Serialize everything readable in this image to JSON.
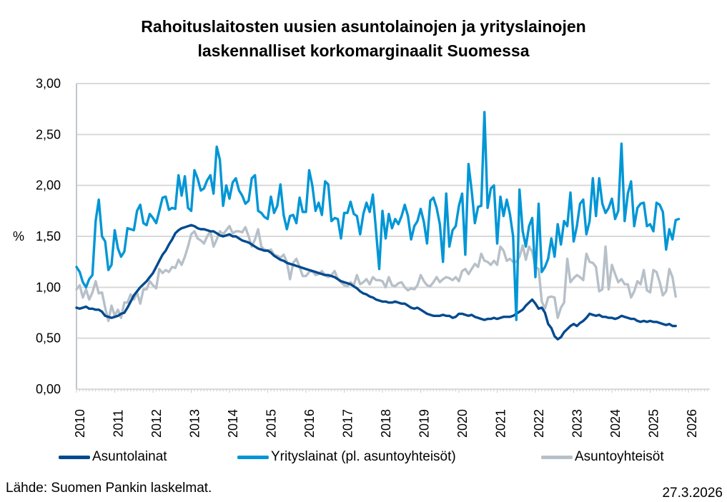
{
  "chart_data": {
    "type": "line",
    "title": "Rahoituslaitosten uusien asuntolainojen ja yrityslainojen laskennalliset korkomarginaalit Suomessa",
    "title_lines": [
      "Rahoituslaitosten uusien asuntolainojen ja yrityslainojen",
      "laskennalliset korkomarginaalit Suomessa"
    ],
    "xlabel": "",
    "ylabel": "%",
    "ylim": [
      0,
      3
    ],
    "y_ticks": [
      "0,00",
      "0,50",
      "1,00",
      "1,50",
      "2,00",
      "2,50",
      "3,00"
    ],
    "x_ticks": [
      "2010",
      "2011",
      "2012",
      "2013",
      "2014",
      "2015",
      "2016",
      "2017",
      "2018",
      "2019",
      "2020",
      "2021",
      "2022",
      "2023",
      "2024",
      "2025",
      "2026"
    ],
    "x_start": "2010-01",
    "frequency": "monthly",
    "grid": "horizontal",
    "legend_position": "bottom",
    "series": [
      {
        "name": "Asuntolainat",
        "color": "#004a8f",
        "values": [
          0.8,
          0.79,
          0.8,
          0.81,
          0.79,
          0.79,
          0.78,
          0.78,
          0.76,
          0.72,
          0.71,
          0.7,
          0.71,
          0.72,
          0.74,
          0.75,
          0.8,
          0.86,
          0.92,
          0.96,
          1.0,
          1.03,
          1.06,
          1.1,
          1.14,
          1.2,
          1.26,
          1.32,
          1.36,
          1.42,
          1.47,
          1.53,
          1.56,
          1.58,
          1.59,
          1.6,
          1.61,
          1.6,
          1.58,
          1.57,
          1.57,
          1.56,
          1.55,
          1.55,
          1.53,
          1.51,
          1.5,
          1.51,
          1.52,
          1.5,
          1.5,
          1.48,
          1.46,
          1.45,
          1.44,
          1.42,
          1.4,
          1.38,
          1.37,
          1.36,
          1.36,
          1.34,
          1.31,
          1.29,
          1.27,
          1.26,
          1.24,
          1.23,
          1.22,
          1.21,
          1.2,
          1.19,
          1.18,
          1.17,
          1.16,
          1.15,
          1.14,
          1.13,
          1.12,
          1.12,
          1.11,
          1.1,
          1.08,
          1.06,
          1.05,
          1.04,
          1.03,
          1.01,
          0.99,
          0.96,
          0.94,
          0.93,
          0.91,
          0.9,
          0.88,
          0.87,
          0.86,
          0.86,
          0.85,
          0.85,
          0.86,
          0.85,
          0.84,
          0.84,
          0.82,
          0.8,
          0.79,
          0.8,
          0.78,
          0.76,
          0.74,
          0.73,
          0.72,
          0.72,
          0.72,
          0.73,
          0.72,
          0.72,
          0.7,
          0.71,
          0.74,
          0.74,
          0.73,
          0.72,
          0.73,
          0.71,
          0.7,
          0.69,
          0.68,
          0.69,
          0.69,
          0.7,
          0.69,
          0.7,
          0.71,
          0.71,
          0.71,
          0.72,
          0.74,
          0.76,
          0.78,
          0.82,
          0.85,
          0.88,
          0.84,
          0.79,
          0.8,
          0.75,
          0.64,
          0.6,
          0.52,
          0.49,
          0.51,
          0.56,
          0.59,
          0.62,
          0.64,
          0.62,
          0.65,
          0.67,
          0.7,
          0.74,
          0.73,
          0.72,
          0.73,
          0.71,
          0.71,
          0.7,
          0.7,
          0.69,
          0.7,
          0.72,
          0.71,
          0.7,
          0.69,
          0.69,
          0.67,
          0.66,
          0.67,
          0.66,
          0.67,
          0.66,
          0.66,
          0.65,
          0.64,
          0.63,
          0.64,
          0.62,
          0.62
        ]
      },
      {
        "name": "Yrityslainat (pl. asuntoyhteisöt)",
        "color": "#0096d6",
        "values": [
          1.2,
          1.15,
          1.05,
          1.0,
          1.08,
          1.12,
          1.65,
          1.86,
          1.5,
          1.45,
          1.17,
          1.22,
          1.56,
          1.38,
          1.3,
          1.35,
          1.58,
          1.57,
          1.56,
          1.75,
          1.81,
          1.63,
          1.61,
          1.72,
          1.68,
          1.63,
          1.75,
          1.88,
          1.89,
          1.76,
          1.78,
          1.77,
          2.1,
          1.9,
          2.09,
          1.78,
          1.75,
          2.15,
          2.07,
          1.95,
          1.97,
          2.05,
          2.1,
          1.92,
          2.38,
          2.25,
          1.8,
          2.0,
          1.87,
          2.03,
          2.07,
          1.95,
          1.9,
          1.82,
          1.85,
          2.07,
          2.1,
          1.75,
          1.73,
          1.69,
          1.67,
          1.89,
          1.73,
          1.8,
          2.01,
          1.71,
          1.57,
          1.7,
          1.71,
          1.63,
          1.88,
          1.74,
          1.74,
          2.15,
          2.0,
          1.75,
          1.83,
          1.71,
          2.04,
          2.01,
          1.65,
          1.68,
          1.67,
          1.48,
          1.73,
          1.73,
          1.84,
          1.72,
          1.7,
          1.52,
          1.72,
          1.83,
          1.74,
          1.91,
          1.55,
          1.18,
          1.75,
          1.48,
          1.72,
          1.58,
          1.67,
          1.62,
          1.7,
          1.81,
          1.7,
          1.47,
          1.6,
          1.65,
          1.77,
          1.64,
          1.43,
          1.85,
          1.88,
          1.78,
          1.62,
          1.25,
          1.92,
          1.4,
          1.56,
          1.6,
          1.8,
          1.92,
          1.32,
          2.21,
          1.95,
          1.63,
          1.79,
          1.8,
          2.72,
          1.78,
          1.97,
          2.0,
          1.43,
          1.89,
          1.7,
          1.86,
          1.72,
          1.5,
          0.68,
          1.96,
          1.55,
          1.4,
          1.6,
          1.68,
          1.1,
          1.82,
          1.15,
          1.2,
          1.28,
          1.48,
          1.3,
          1.62,
          1.42,
          1.65,
          1.6,
          1.93,
          1.45,
          1.6,
          1.82,
          1.86,
          1.52,
          1.65,
          2.07,
          1.7,
          2.07,
          1.82,
          1.73,
          1.78,
          1.87,
          1.67,
          1.75,
          2.41,
          1.65,
          1.92,
          2.04,
          1.6,
          1.78,
          1.82,
          1.83,
          1.6,
          1.62,
          1.55,
          1.83,
          1.81,
          1.74,
          1.37,
          1.57,
          1.47,
          1.66,
          1.67
        ]
      },
      {
        "name": "Asuntoyhteisöt",
        "color": "#b7c0c8",
        "values": [
          0.98,
          1.02,
          0.9,
          0.98,
          0.88,
          0.95,
          1.06,
          0.94,
          0.95,
          0.8,
          0.67,
          0.82,
          0.72,
          0.78,
          0.7,
          0.85,
          0.85,
          0.93,
          0.88,
          0.95,
          0.84,
          0.98,
          0.98,
          1.06,
          1.02,
          0.99,
          1.18,
          1.14,
          1.17,
          1.15,
          1.2,
          1.19,
          1.27,
          1.22,
          1.3,
          1.4,
          1.52,
          1.55,
          1.48,
          1.46,
          1.43,
          1.5,
          1.55,
          1.4,
          1.47,
          1.55,
          1.52,
          1.56,
          1.6,
          1.53,
          1.55,
          1.55,
          1.54,
          1.59,
          1.5,
          1.4,
          1.47,
          1.57,
          1.4,
          1.37,
          1.36,
          1.37,
          1.32,
          1.31,
          1.29,
          1.32,
          1.25,
          1.08,
          1.24,
          1.28,
          1.2,
          1.11,
          1.11,
          1.15,
          1.16,
          1.12,
          1.13,
          1.16,
          1.12,
          1.1,
          1.12,
          1.16,
          1.08,
          1.05,
          1.02,
          1.01,
          1.05,
          1.02,
          1.12,
          1.03,
          1.05,
          1.08,
          1.03,
          1.1,
          1.07,
          1.07,
          1.06,
          1.0,
          1.1,
          1.02,
          1.01,
          1.04,
          1.05,
          1.0,
          0.97,
          0.99,
          0.98,
          1.02,
          1.12,
          1.06,
          1.02,
          1.01,
          1.05,
          1.1,
          1.05,
          1.08,
          1.1,
          1.09,
          1.07,
          1.1,
          1.06,
          1.16,
          1.18,
          1.13,
          1.18,
          1.23,
          1.2,
          1.33,
          1.26,
          1.25,
          1.22,
          1.26,
          1.22,
          1.4,
          1.36,
          1.26,
          1.28,
          1.25,
          1.25,
          1.3,
          1.41,
          1.27,
          1.4,
          1.35,
          1.2,
          1.18,
          0.86,
          0.79,
          0.9,
          0.91,
          0.9,
          0.7,
          0.8,
          0.85,
          1.28,
          1.05,
          1.09,
          1.12,
          1.1,
          1.07,
          1.33,
          1.25,
          1.24,
          1.2,
          0.96,
          0.98,
          1.4,
          0.98,
          1.22,
          1.13,
          1.05,
          1.08,
          1.03,
          1.03,
          0.9,
          0.96,
          1.06,
          1.03,
          1.17,
          0.97,
          0.95,
          1.17,
          1.15,
          1.05,
          0.92,
          0.96,
          1.18,
          1.1,
          0.91
        ]
      }
    ]
  },
  "footer": {
    "source": "Lähde: Suomen Pankin laskelmat.",
    "date": "27.3.2026"
  }
}
